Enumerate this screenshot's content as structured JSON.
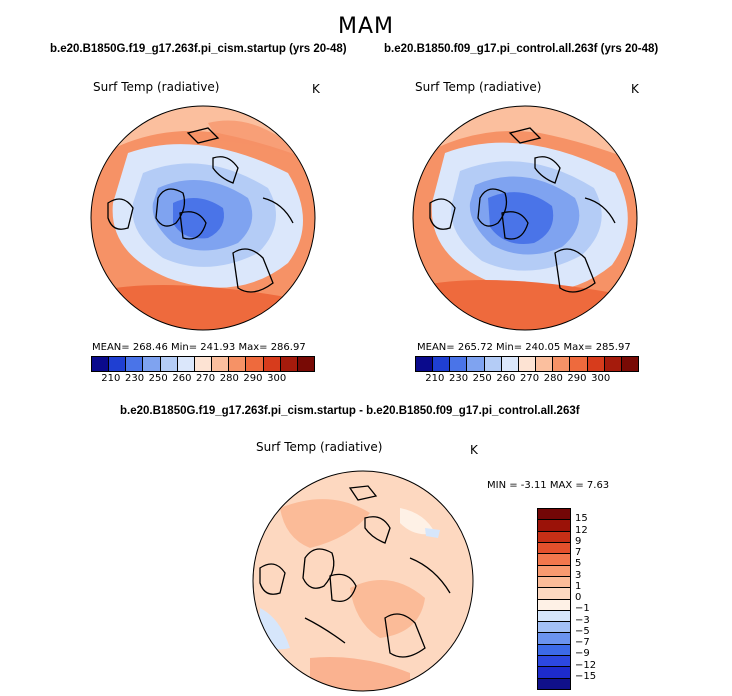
{
  "title": "MAM",
  "left_panel": {
    "case": "b.e20.B1850G.f19_g17.263f.pi_cism.startup (yrs 20-48)",
    "variable": "Surf Temp (radiative)",
    "unit": "K",
    "stats": "MEAN= 268.46   Min= 241.93   Max= 286.97"
  },
  "right_panel": {
    "case": "b.e20.B1850.f09_g17.pi_control.all.263f (yrs 20-48)",
    "variable": "Surf Temp (radiative)",
    "unit": "K",
    "stats": "MEAN= 265.72   Min= 240.05   Max= 285.97"
  },
  "diff_panel": {
    "case": "b.e20.B1850G.f19_g17.263f.pi_cism.startup - b.e20.B1850.f09_g17.pi_control.all.263f",
    "variable": "Surf Temp (radiative)",
    "unit": "K",
    "stats": "MIN =   -3.11  MAX =    7.63"
  },
  "colors": {
    "abs_scale": [
      "#0a0a8c",
      "#1f3fd2",
      "#4a74e8",
      "#7fa3f0",
      "#b4ccf6",
      "#dbe7fb",
      "#fde3d3",
      "#fbbf9e",
      "#f69266",
      "#ee6a3d",
      "#d73c1c",
      "#a51b0c",
      "#780a05"
    ],
    "diff_scale": [
      "#10108a",
      "#1d2bcc",
      "#2c48e0",
      "#3c6ae8",
      "#6b93ef",
      "#a3c0f5",
      "#d6e6fb",
      "#fef1e6",
      "#fdd8c0",
      "#fbbb98",
      "#f89a70",
      "#f2774d",
      "#e4502c",
      "#c72f16",
      "#9b1208",
      "#730606"
    ]
  },
  "chart_data": [
    {
      "type": "heatmap",
      "title": "Surf Temp (radiative)",
      "projection": "north-polar-stereographic",
      "units": "K",
      "mean": 268.46,
      "min": 241.93,
      "max": 286.97,
      "levels": [
        210,
        230,
        250,
        260,
        270,
        280,
        290,
        300
      ]
    },
    {
      "type": "heatmap",
      "title": "Surf Temp (radiative)",
      "projection": "north-polar-stereographic",
      "units": "K",
      "mean": 265.72,
      "min": 240.05,
      "max": 285.97,
      "levels": [
        210,
        230,
        250,
        260,
        270,
        280,
        290,
        300
      ]
    },
    {
      "type": "heatmap",
      "title": "Surf Temp (radiative)",
      "projection": "north-polar-stereographic",
      "units": "K",
      "min": -3.11,
      "max": 7.63,
      "levels": [
        15,
        12,
        9,
        7,
        5,
        3,
        1,
        0,
        -1,
        -3,
        -5,
        -7,
        -9,
        -12,
        -15
      ]
    }
  ],
  "levels_abs_labels": [
    "210",
    "230",
    "250",
    "260",
    "270",
    "280",
    "290",
    "300"
  ],
  "levels_diff_labels": [
    "15",
    "12",
    "9",
    "7",
    "5",
    "3",
    "1",
    "0",
    "−1",
    "−3",
    "−5",
    "−7",
    "−9",
    "−12",
    "−15"
  ]
}
